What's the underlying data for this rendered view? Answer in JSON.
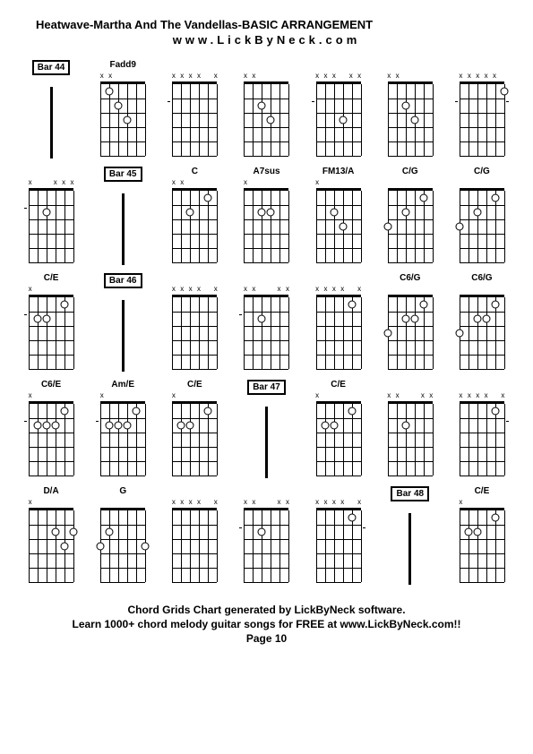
{
  "title": "Heatwave-Martha And The Vandellas-BASIC ARRANGEMENT",
  "subtitle": "www.LickByNeck.com",
  "footer": {
    "line1": "Chord Grids Chart generated by LickByNeck software.",
    "line2": "Learn 1000+ chord melody guitar songs for FREE at www.LickByNeck.com!!",
    "line3": "Page 10"
  },
  "layout": {
    "cols": 7,
    "rows": 5,
    "strings": 6,
    "frets": 5,
    "diagram_width": 56,
    "diagram_height": 95,
    "string_spacing": 10,
    "fret_spacing": 16
  },
  "cells": [
    {
      "type": "bar",
      "label": "Bar 44"
    },
    {
      "type": "chord",
      "label": "Fadd9",
      "mutes": "xx____",
      "dots": [
        {
          "s": 3,
          "f": 2
        },
        {
          "s": 4,
          "f": 3
        },
        {
          "s": 2,
          "f": 1
        }
      ],
      "ticks": []
    },
    {
      "type": "chord",
      "label": "",
      "mutes": "xxxx_x",
      "dots": [],
      "ticks": [
        "left"
      ]
    },
    {
      "type": "chord",
      "label": "",
      "mutes": "xx____",
      "dots": [
        {
          "s": 3,
          "f": 2
        },
        {
          "s": 4,
          "f": 3
        }
      ],
      "ticks": []
    },
    {
      "type": "chord",
      "label": "",
      "mutes": "xxx_xx",
      "dots": [
        {
          "s": 4,
          "f": 3
        }
      ],
      "ticks": [
        "left"
      ]
    },
    {
      "type": "chord",
      "label": "",
      "mutes": "xx____",
      "dots": [
        {
          "s": 3,
          "f": 2
        },
        {
          "s": 4,
          "f": 3
        }
      ],
      "ticks": []
    },
    {
      "type": "chord",
      "label": "",
      "mutes": "xxxxx_",
      "dots": [
        {
          "s": 6,
          "f": 1
        }
      ],
      "ticks": [
        "left",
        "right"
      ]
    },
    {
      "type": "chord",
      "label": "",
      "mutes": "x__xxx",
      "dots": [
        {
          "s": 3,
          "f": 2
        }
      ],
      "ticks": [
        "left"
      ]
    },
    {
      "type": "bar",
      "label": "Bar 45"
    },
    {
      "type": "chord",
      "label": "C",
      "mutes": "xx____",
      "dots": [
        {
          "s": 3,
          "f": 2
        },
        {
          "s": 5,
          "f": 1
        }
      ],
      "ticks": []
    },
    {
      "type": "chord",
      "label": "A7sus",
      "mutes": "x_____",
      "dots": [
        {
          "s": 3,
          "f": 2
        },
        {
          "s": 4,
          "f": 2
        }
      ],
      "ticks": []
    },
    {
      "type": "chord",
      "label": "FM13/A",
      "mutes": "x_____",
      "dots": [
        {
          "s": 3,
          "f": 2
        },
        {
          "s": 4,
          "f": 3
        }
      ],
      "ticks": []
    },
    {
      "type": "chord",
      "label": "C/G",
      "mutes": "______",
      "dots": [
        {
          "s": 1,
          "f": 3
        },
        {
          "s": 3,
          "f": 2
        },
        {
          "s": 5,
          "f": 1
        }
      ],
      "ticks": []
    },
    {
      "type": "chord",
      "label": "C/G",
      "mutes": "______",
      "dots": [
        {
          "s": 1,
          "f": 3
        },
        {
          "s": 3,
          "f": 2
        },
        {
          "s": 5,
          "f": 1
        }
      ],
      "ticks": []
    },
    {
      "type": "chord",
      "label": "C/E",
      "mutes": "x_____",
      "dots": [
        {
          "s": 2,
          "f": 2
        },
        {
          "s": 3,
          "f": 2
        },
        {
          "s": 5,
          "f": 1
        }
      ],
      "ticks": [
        "left"
      ]
    },
    {
      "type": "bar",
      "label": "Bar 46"
    },
    {
      "type": "chord",
      "label": "",
      "mutes": "xxxx_x",
      "dots": [],
      "ticks": []
    },
    {
      "type": "chord",
      "label": "",
      "mutes": "xx__xx",
      "dots": [
        {
          "s": 3,
          "f": 2
        }
      ],
      "ticks": [
        "left"
      ]
    },
    {
      "type": "chord",
      "label": "",
      "mutes": "xxxx_x",
      "dots": [
        {
          "s": 5,
          "f": 1
        }
      ],
      "ticks": []
    },
    {
      "type": "chord",
      "label": "C6/G",
      "mutes": "______",
      "dots": [
        {
          "s": 1,
          "f": 3
        },
        {
          "s": 3,
          "f": 2
        },
        {
          "s": 4,
          "f": 2
        },
        {
          "s": 5,
          "f": 1
        }
      ],
      "ticks": []
    },
    {
      "type": "chord",
      "label": "C6/G",
      "mutes": "______",
      "dots": [
        {
          "s": 1,
          "f": 3
        },
        {
          "s": 3,
          "f": 2
        },
        {
          "s": 4,
          "f": 2
        },
        {
          "s": 5,
          "f": 1
        }
      ],
      "ticks": []
    },
    {
      "type": "chord",
      "label": "C6/E",
      "mutes": "x_____",
      "dots": [
        {
          "s": 2,
          "f": 2
        },
        {
          "s": 3,
          "f": 2
        },
        {
          "s": 4,
          "f": 2
        },
        {
          "s": 5,
          "f": 1
        }
      ],
      "ticks": [
        "left"
      ]
    },
    {
      "type": "chord",
      "label": "Am/E",
      "mutes": "x_____",
      "dots": [
        {
          "s": 2,
          "f": 2
        },
        {
          "s": 3,
          "f": 2
        },
        {
          "s": 4,
          "f": 2
        },
        {
          "s": 5,
          "f": 1
        }
      ],
      "ticks": [
        "left"
      ]
    },
    {
      "type": "chord",
      "label": "C/E",
      "mutes": "x_____",
      "dots": [
        {
          "s": 2,
          "f": 2
        },
        {
          "s": 3,
          "f": 2
        },
        {
          "s": 5,
          "f": 1
        }
      ],
      "ticks": []
    },
    {
      "type": "bar",
      "label": "Bar 47"
    },
    {
      "type": "chord",
      "label": "C/E",
      "mutes": "x_____",
      "dots": [
        {
          "s": 2,
          "f": 2
        },
        {
          "s": 3,
          "f": 2
        },
        {
          "s": 5,
          "f": 1
        }
      ],
      "ticks": []
    },
    {
      "type": "chord",
      "label": "",
      "mutes": "xx__xx",
      "dots": [
        {
          "s": 3,
          "f": 2
        }
      ],
      "ticks": []
    },
    {
      "type": "chord",
      "label": "",
      "mutes": "xxxx_x",
      "dots": [
        {
          "s": 5,
          "f": 1
        }
      ],
      "ticks": [
        "right"
      ]
    },
    {
      "type": "chord",
      "label": "D/A",
      "mutes": "x_____",
      "dots": [
        {
          "s": 4,
          "f": 2
        },
        {
          "s": 5,
          "f": 3
        },
        {
          "s": 6,
          "f": 2
        }
      ],
      "ticks": []
    },
    {
      "type": "chord",
      "label": "G",
      "mutes": "______",
      "dots": [
        {
          "s": 1,
          "f": 3
        },
        {
          "s": 2,
          "f": 2
        },
        {
          "s": 6,
          "f": 3
        }
      ],
      "ticks": []
    },
    {
      "type": "chord",
      "label": "",
      "mutes": "xxxx_x",
      "dots": [],
      "ticks": []
    },
    {
      "type": "chord",
      "label": "",
      "mutes": "xx__xx",
      "dots": [
        {
          "s": 3,
          "f": 2
        }
      ],
      "ticks": [
        "left"
      ]
    },
    {
      "type": "chord",
      "label": "",
      "mutes": "xxxx_x",
      "dots": [
        {
          "s": 5,
          "f": 1
        }
      ],
      "ticks": [
        "right"
      ]
    },
    {
      "type": "bar",
      "label": "Bar 48"
    },
    {
      "type": "chord",
      "label": "C/E",
      "mutes": "x_____",
      "dots": [
        {
          "s": 2,
          "f": 2
        },
        {
          "s": 3,
          "f": 2
        },
        {
          "s": 5,
          "f": 1
        }
      ],
      "ticks": []
    }
  ]
}
